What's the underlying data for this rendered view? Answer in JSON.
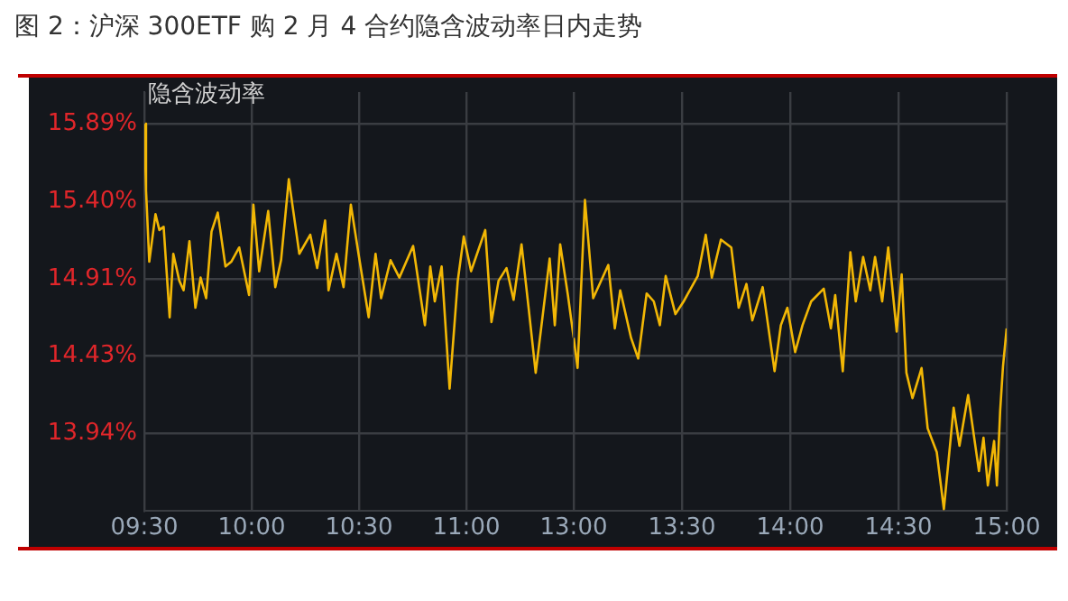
{
  "chart_data": [
    {
      "type": "line",
      "title": "图 2：沪深 300ETF 购 2 月 4 合约隐含波动率日内走势",
      "ylabel": "隐含波动率",
      "xlim": [
        9.5,
        11.5
      ],
      "xticks": [
        {
          "value": 9.5,
          "label": "09:30"
        },
        {
          "value": 10,
          "label": "10:00"
        },
        {
          "value": 10.5,
          "label": "10:30"
        },
        {
          "value": 11,
          "label": "11:00"
        }
      ],
      "ylim": [
        13.45,
        16.09
      ],
      "yticks": [
        {
          "value": 13.94,
          "label": "13.94%"
        },
        {
          "value": 14.43,
          "label": "14.43%"
        },
        {
          "value": 14.91,
          "label": "14.91%"
        },
        {
          "value": 15.4,
          "label": "15.40%"
        },
        {
          "value": 15.89,
          "label": "15.89%"
        }
      ],
      "grid": true,
      "legend": false,
      "marker": "none",
      "line_style": "solid",
      "series": [
        {
          "color": "#f2b705",
          "x": [
            9.5,
            9.508,
            9.523,
            9.552,
            9.57,
            9.59,
            9.618,
            9.635,
            9.663,
            9.683,
            9.71,
            9.738,
            9.762,
            9.788,
            9.813,
            9.842,
            9.878,
            9.905,
            9.942,
            9.988,
            10.008,
            10.035,
            10.077,
            10.11,
            10.137,
            10.173,
            10.222,
            10.273,
            10.305,
            10.342,
            10.358,
            10.395,
            10.428,
            10.462,
            10.5,
            10.545,
            10.577,
            10.603,
            10.647,
            10.688,
            10.752,
            10.807,
            10.832,
            10.853,
            10.885,
            10.922,
            10.96,
            10.988,
            11.022,
            11.06,
            11.088,
            11.117,
            11.15,
            11.187,
            11.22,
            11.257,
            11.29,
            11.323,
            11.388,
            11.412,
            11.437,
            11.473,
            11.5
          ],
          "values": [
            15.89,
            15.47,
            15.02,
            15.32,
            15.22,
            15.24,
            14.67,
            15.07,
            14.9,
            14.84,
            15.15,
            14.73,
            14.92,
            14.79,
            15.21,
            15.33,
            14.99,
            15.02,
            15.11,
            14.81,
            15.38,
            14.96,
            15.34,
            14.86,
            15.03,
            15.54,
            15.07,
            15.19,
            14.98,
            15.28,
            14.84,
            15.07,
            14.86,
            15.38,
            15.05,
            14.67,
            15.07,
            14.79,
            15.03,
            14.92,
            15.12,
            14.62,
            14.99,
            14.77,
            14.99,
            14.22,
            14.9,
            15.18,
            14.96,
            15.11,
            15.22,
            14.64,
            14.9,
            14.98,
            14.78,
            15.13,
            14.73,
            14.32,
            15.04,
            14.62,
            15.13,
            14.81,
            14.54
          ]
        }
      ]
    },
    {
      "type": "line",
      "xlim": [
        13,
        15
      ],
      "xticks": [
        {
          "value": 13,
          "label": "13:00"
        },
        {
          "value": 13.5,
          "label": "13:30"
        },
        {
          "value": 14,
          "label": "14:00"
        },
        {
          "value": 14.5,
          "label": "14:30"
        },
        {
          "value": 15,
          "label": "15:00"
        }
      ],
      "ylim": [
        13.45,
        16.09
      ],
      "yticks": [
        13.94,
        14.43,
        14.91,
        15.4,
        15.89
      ],
      "tick_labels": "x",
      "grid": true,
      "legend": false,
      "marker": "none",
      "line_style": "solid",
      "series": [
        {
          "color": "#f2b705",
          "x": [
            13,
            13.018,
            13.052,
            13.09,
            13.16,
            13.19,
            13.215,
            13.265,
            13.298,
            13.337,
            13.37,
            13.398,
            13.425,
            13.47,
            13.508,
            13.573,
            13.61,
            13.638,
            13.68,
            13.728,
            13.762,
            13.798,
            13.825,
            13.873,
            13.928,
            13.957,
            13.987,
            14.023,
            14.057,
            14.097,
            14.155,
            14.188,
            14.208,
            14.243,
            14.278,
            14.303,
            14.337,
            14.37,
            14.392,
            14.425,
            14.453,
            14.492,
            14.515,
            14.537,
            14.565,
            14.607,
            14.635,
            14.677,
            14.71,
            14.755,
            14.782,
            14.822,
            14.872,
            14.893,
            14.913,
            14.942,
            14.955,
            14.97,
            14.983,
            15
          ],
          "values": [
            14.54,
            14.35,
            15.41,
            14.79,
            15,
            14.6,
            14.84,
            14.54,
            14.41,
            14.82,
            14.77,
            14.62,
            14.93,
            14.69,
            14.77,
            14.93,
            15.19,
            14.92,
            15.16,
            15.11,
            14.73,
            14.88,
            14.65,
            14.86,
            14.33,
            14.62,
            14.73,
            14.45,
            14.62,
            14.77,
            14.85,
            14.6,
            14.81,
            14.33,
            15.08,
            14.77,
            15.05,
            14.84,
            15.05,
            14.77,
            15.11,
            14.58,
            14.94,
            14.32,
            14.16,
            14.35,
            13.97,
            13.82,
            13.46,
            14.1,
            13.86,
            14.18,
            13.7,
            13.91,
            13.61,
            13.89,
            13.61,
            14.08,
            14.36,
            14.6
          ]
        }
      ]
    }
  ]
}
